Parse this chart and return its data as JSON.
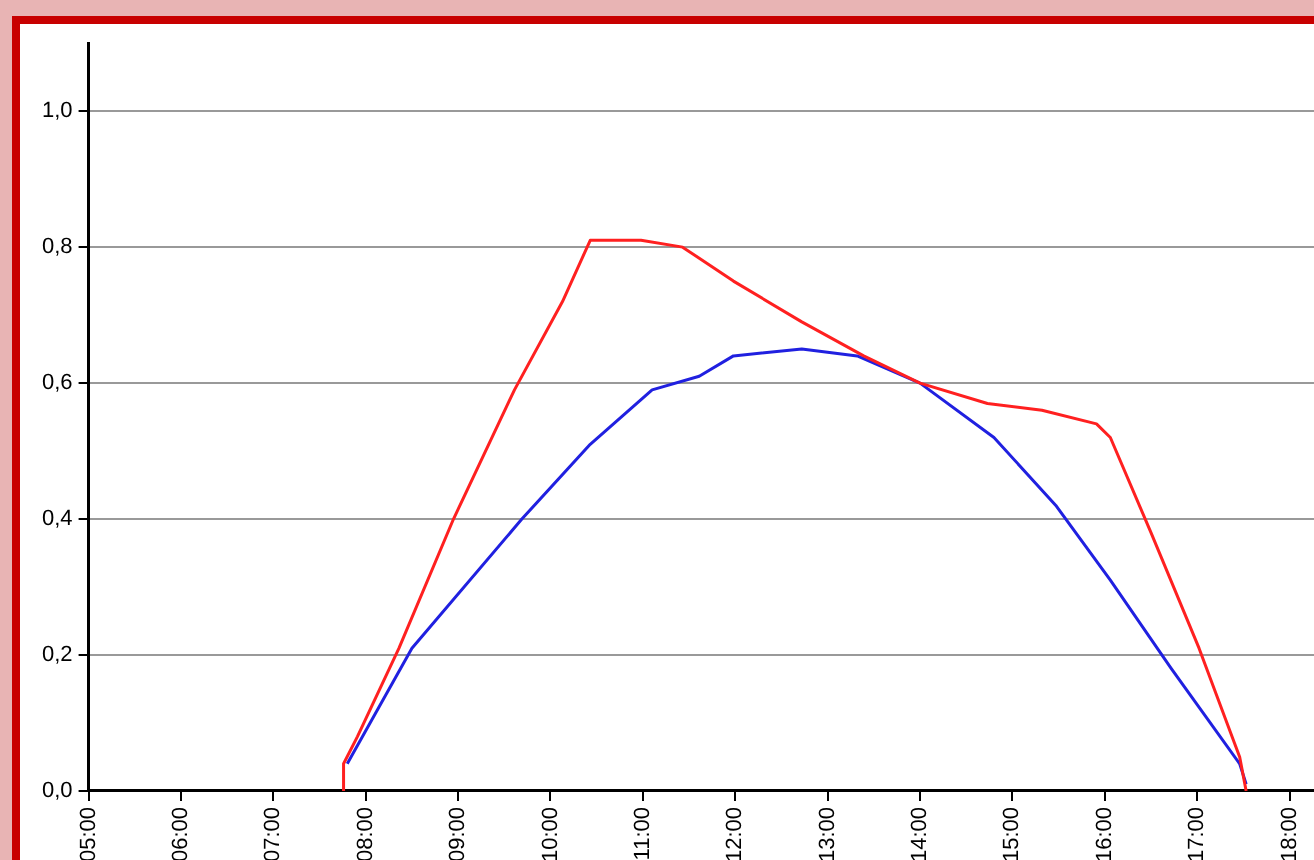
{
  "chart_data": {
    "type": "line",
    "xlim": [
      5,
      18.3
    ],
    "ylim": [
      0,
      1.1
    ],
    "xticks": [
      {
        "value": 5,
        "label": "05:00"
      },
      {
        "value": 6,
        "label": "06:00"
      },
      {
        "value": 7,
        "label": "07:00"
      },
      {
        "value": 8,
        "label": "08:00"
      },
      {
        "value": 9,
        "label": "09:00"
      },
      {
        "value": 10,
        "label": "10:00"
      },
      {
        "value": 11,
        "label": "11:00"
      },
      {
        "value": 12,
        "label": "12:00"
      },
      {
        "value": 13,
        "label": "13:00"
      },
      {
        "value": 14,
        "label": "14:00"
      },
      {
        "value": 15,
        "label": "15:00"
      },
      {
        "value": 16,
        "label": "16:00"
      },
      {
        "value": 17,
        "label": "17:00"
      },
      {
        "value": 18,
        "label": "18:00"
      }
    ],
    "yticks": [
      {
        "value": 0,
        "label": "0,0"
      },
      {
        "value": 0.2,
        "label": "0,2"
      },
      {
        "value": 0.4,
        "label": "0,4"
      },
      {
        "value": 0.6,
        "label": "0,6"
      },
      {
        "value": 0.8,
        "label": "0,8"
      },
      {
        "value": 1,
        "label": "1,0"
      }
    ],
    "grid": "y",
    "legend": false,
    "marker": "none",
    "line_style": "solid",
    "series": [
      {
        "color": "#ff2020",
        "x": [
          7.76,
          7.76,
          7.91,
          8.36,
          8.95,
          9.61,
          10.13,
          10.43,
          10.98,
          11.43,
          11.98,
          12.72,
          13.39,
          14.0,
          14.73,
          15.32,
          15.91,
          16.06,
          16.5,
          17.02,
          17.46,
          17.53
        ],
        "values": [
          0,
          0.04,
          0.08,
          0.21,
          0.4,
          0.59,
          0.72,
          0.81,
          0.81,
          0.8,
          0.75,
          0.69,
          0.64,
          0.6,
          0.57,
          0.56,
          0.54,
          0.52,
          0.38,
          0.21,
          0.05,
          0
        ]
      },
      {
        "color": "#2020e0",
        "x": [
          7.8,
          8.5,
          9.69,
          10.43,
          11.1,
          11.61,
          11.98,
          12.72,
          13.32,
          14.0,
          14.8,
          15.47,
          16.06,
          16.72,
          17.46,
          17.53
        ],
        "values": [
          0.04,
          0.21,
          0.4,
          0.51,
          0.59,
          0.61,
          0.64,
          0.65,
          0.64,
          0.6,
          0.52,
          0.42,
          0.31,
          0.18,
          0.04,
          0.01
        ]
      }
    ]
  }
}
